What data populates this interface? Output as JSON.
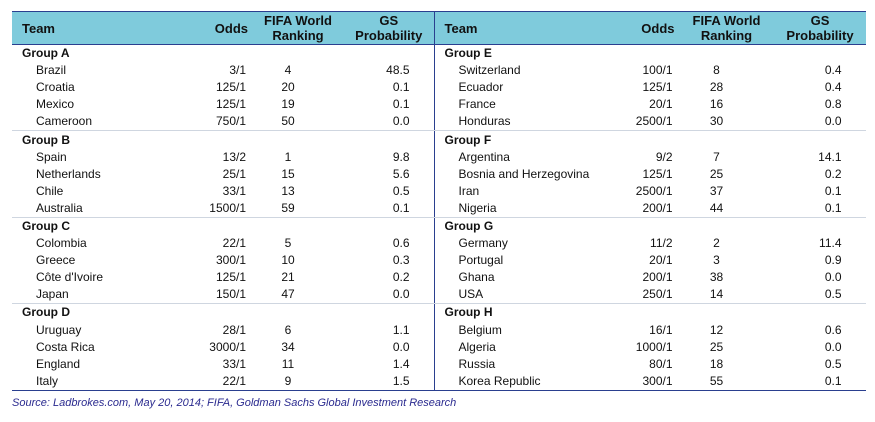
{
  "headers": {
    "team": "Team",
    "odds": "Odds",
    "rank_line1": "FIFA World",
    "rank_line2": "Ranking",
    "prob_line1": "GS",
    "prob_line2": "Probability"
  },
  "left_groups": [
    {
      "name": "Group A",
      "rows": [
        [
          "Brazil",
          "3/1",
          "4",
          "48.5"
        ],
        [
          "Croatia",
          "125/1",
          "20",
          "0.1"
        ],
        [
          "Mexico",
          "125/1",
          "19",
          "0.1"
        ],
        [
          "Cameroon",
          "750/1",
          "50",
          "0.0"
        ]
      ]
    },
    {
      "name": "Group B",
      "rows": [
        [
          "Spain",
          "13/2",
          "1",
          "9.8"
        ],
        [
          "Netherlands",
          "25/1",
          "15",
          "5.6"
        ],
        [
          "Chile",
          "33/1",
          "13",
          "0.5"
        ],
        [
          "Australia",
          "1500/1",
          "59",
          "0.1"
        ]
      ]
    },
    {
      "name": "Group C",
      "rows": [
        [
          "Colombia",
          "22/1",
          "5",
          "0.6"
        ],
        [
          "Greece",
          "300/1",
          "10",
          "0.3"
        ],
        [
          "Côte d'Ivoire",
          "125/1",
          "21",
          "0.2"
        ],
        [
          "Japan",
          "150/1",
          "47",
          "0.0"
        ]
      ]
    },
    {
      "name": "Group D",
      "rows": [
        [
          "Uruguay",
          "28/1",
          "6",
          "1.1"
        ],
        [
          "Costa Rica",
          "3000/1",
          "34",
          "0.0"
        ],
        [
          "England",
          "33/1",
          "11",
          "1.4"
        ],
        [
          "Italy",
          "22/1",
          "9",
          "1.5"
        ]
      ]
    }
  ],
  "right_groups": [
    {
      "name": "Group E",
      "rows": [
        [
          "Switzerland",
          "100/1",
          "8",
          "0.4"
        ],
        [
          "Ecuador",
          "125/1",
          "28",
          "0.4"
        ],
        [
          "France",
          "20/1",
          "16",
          "0.8"
        ],
        [
          "Honduras",
          "2500/1",
          "30",
          "0.0"
        ]
      ]
    },
    {
      "name": "Group F",
      "rows": [
        [
          "Argentina",
          "9/2",
          "7",
          "14.1"
        ],
        [
          "Bosnia and Herzegovina",
          "125/1",
          "25",
          "0.2"
        ],
        [
          "Iran",
          "2500/1",
          "37",
          "0.1"
        ],
        [
          "Nigeria",
          "200/1",
          "44",
          "0.1"
        ]
      ]
    },
    {
      "name": "Group G",
      "rows": [
        [
          "Germany",
          "11/2",
          "2",
          "11.4"
        ],
        [
          "Portugal",
          "20/1",
          "3",
          "0.9"
        ],
        [
          "Ghana",
          "200/1",
          "38",
          "0.0"
        ],
        [
          "USA",
          "250/1",
          "14",
          "0.5"
        ]
      ]
    },
    {
      "name": "Group H",
      "rows": [
        [
          "Belgium",
          "16/1",
          "12",
          "0.6"
        ],
        [
          "Algeria",
          "1000/1",
          "25",
          "0.0"
        ],
        [
          "Russia",
          "80/1",
          "18",
          "0.5"
        ],
        [
          "Korea Republic",
          "300/1",
          "55",
          "0.1"
        ]
      ]
    }
  ],
  "source": "Source: Ladbrokes.com, May 20, 2014; FIFA, Goldman Sachs Global Investment Research"
}
